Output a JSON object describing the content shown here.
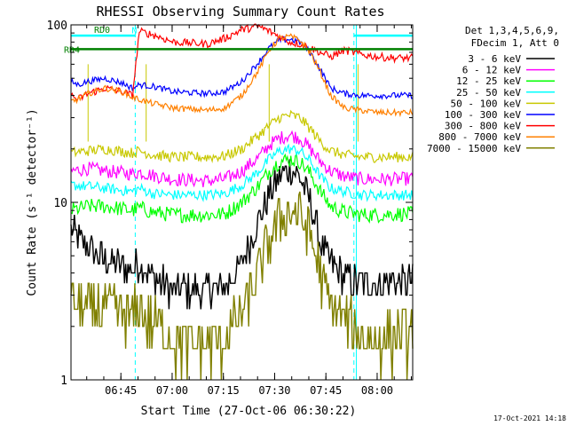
{
  "chart_data": {
    "type": "line",
    "title": "RHESSI Observing Summary Count Rates",
    "xlabel": "Start Time (27-Oct-06 06:30:22)",
    "ylabel": "Count Rate (s⁻¹ detector⁻¹)",
    "yscale": "log",
    "ylim": [
      1,
      100
    ],
    "xlim_minutes": [
      0,
      100
    ],
    "x_ticks": [
      {
        "label": "06:45",
        "minute": 14.6
      },
      {
        "label": "07:00",
        "minute": 29.6
      },
      {
        "label": "07:15",
        "minute": 44.6
      },
      {
        "label": "07:30",
        "minute": 59.6
      },
      {
        "label": "07:45",
        "minute": 74.6
      },
      {
        "label": "08:00",
        "minute": 89.6
      }
    ],
    "y_ticks": [
      {
        "label": "1",
        "value": 1
      },
      {
        "label": "10",
        "value": 10
      },
      {
        "label": "100",
        "value": 100
      }
    ],
    "legend_header": [
      "Det 1,3,4,5,6,9,",
      "FDecim 1, Att 0"
    ],
    "legend_position": "right",
    "series": [
      {
        "name": "3 - 6 keV",
        "color": "#000000",
        "x": [
          0,
          5,
          10,
          18,
          20,
          24,
          30,
          40,
          45,
          50,
          55,
          58,
          61,
          64,
          67,
          70,
          73,
          76,
          80,
          85,
          90,
          95,
          100
        ],
        "values": [
          7,
          5.5,
          4.8,
          4.2,
          4.5,
          3.8,
          3.2,
          3.2,
          3.3,
          4.5,
          8,
          11,
          14,
          15.5,
          14,
          10,
          6,
          4.5,
          3.8,
          3.5,
          3.5,
          3.6,
          3.6
        ]
      },
      {
        "name": "6 - 12 keV",
        "color": "#ff00ff",
        "x": [
          0,
          5,
          10,
          18,
          20,
          24,
          30,
          40,
          45,
          50,
          55,
          58,
          61,
          64,
          67,
          70,
          73,
          76,
          80,
          85,
          90,
          95,
          100
        ],
        "values": [
          15,
          15.5,
          15,
          14.5,
          14.8,
          14.2,
          13.5,
          13.2,
          13.5,
          15,
          18,
          21,
          23,
          24,
          23,
          20,
          17,
          15,
          14,
          13.5,
          13.5,
          13.5,
          13.6
        ]
      },
      {
        "name": "12 - 25 keV",
        "color": "#00ff00",
        "x": [
          0,
          5,
          10,
          18,
          20,
          24,
          30,
          40,
          45,
          50,
          55,
          58,
          61,
          64,
          67,
          70,
          73,
          76,
          80,
          85,
          90,
          95,
          100
        ],
        "values": [
          9,
          9.5,
          9.5,
          9,
          9.3,
          8.8,
          8.5,
          8.5,
          8.6,
          10,
          12.5,
          15,
          17,
          17.5,
          17,
          14.5,
          11.5,
          9.5,
          8.8,
          8.5,
          8.5,
          8.6,
          8.6
        ]
      },
      {
        "name": "25 - 50 keV",
        "color": "#00ffff",
        "x": [
          0,
          5,
          10,
          18,
          20,
          24,
          30,
          40,
          45,
          50,
          55,
          58,
          61,
          64,
          67,
          70,
          73,
          76,
          80,
          85,
          90,
          95,
          100
        ],
        "values": [
          12.5,
          12.3,
          12,
          11.5,
          12,
          11.2,
          11,
          11,
          11.2,
          12.5,
          15,
          17.5,
          19.5,
          20,
          19.5,
          17,
          14,
          12,
          11.5,
          11,
          11,
          11,
          11
        ]
      },
      {
        "name": "50 - 100 keV",
        "color": "#c8c800",
        "x": [
          0,
          5,
          10,
          18,
          20,
          24,
          30,
          40,
          45,
          50,
          55,
          58,
          61,
          64,
          67,
          70,
          73,
          76,
          80,
          85,
          90,
          95,
          100
        ],
        "values": [
          19,
          19.5,
          20,
          19,
          19.5,
          18.5,
          18,
          18,
          18.2,
          20,
          24,
          27,
          30,
          31,
          30,
          26,
          22,
          19.5,
          18.5,
          18,
          18,
          18,
          18
        ]
      },
      {
        "name": "100 - 300 keV",
        "color": "#0000ff",
        "x": [
          0,
          2,
          5,
          10,
          15,
          18,
          20,
          24,
          30,
          40,
          45,
          50,
          55,
          58,
          61,
          64,
          67,
          70,
          73,
          76,
          80,
          85,
          90,
          95,
          100
        ],
        "values": [
          48,
          46,
          48,
          50,
          47,
          44,
          46,
          45,
          42,
          41,
          42,
          48,
          62,
          74,
          82,
          83,
          80,
          70,
          56,
          44,
          41,
          40,
          40,
          40,
          40
        ]
      },
      {
        "name": "300 - 800 keV",
        "color": "#ff0000",
        "x": [
          0,
          2,
          5,
          10,
          15,
          18,
          20,
          24,
          30,
          40,
          45,
          50,
          55,
          58,
          61,
          64,
          67,
          70,
          73,
          76,
          80,
          85,
          90,
          95,
          100
        ],
        "values": [
          40,
          38,
          41,
          44,
          42,
          40,
          92,
          88,
          80,
          78,
          84,
          94,
          98,
          92,
          86,
          80,
          78,
          74,
          70,
          66,
          72,
          68,
          66,
          65,
          65
        ]
      },
      {
        "name": "800 - 7000 keV",
        "color": "#ff8000",
        "x": [
          0,
          2,
          5,
          10,
          15,
          18,
          20,
          24,
          30,
          40,
          45,
          50,
          55,
          58,
          61,
          64,
          67,
          70,
          73,
          76,
          80,
          85,
          90,
          95,
          100
        ],
        "values": [
          37,
          38,
          41,
          44,
          42,
          39,
          38,
          36,
          34,
          33,
          34,
          40,
          56,
          72,
          84,
          86,
          82,
          70,
          54,
          40,
          34,
          33,
          32,
          32,
          32
        ]
      },
      {
        "name": "7000 - 15000 keV",
        "color": "#808000",
        "x": [
          0,
          5,
          10,
          18,
          20,
          24,
          30,
          40,
          45,
          50,
          55,
          58,
          61,
          64,
          67,
          70,
          73,
          76,
          80,
          85,
          90,
          95,
          100
        ],
        "values": [
          2.8,
          2.5,
          2.6,
          2.3,
          2.4,
          2.1,
          1.6,
          1.6,
          1.7,
          2.3,
          4,
          6,
          8,
          9,
          8.5,
          6.5,
          4,
          2.6,
          2.1,
          1.8,
          1.7,
          1.7,
          1.8
        ]
      }
    ],
    "annotations": [
      {
        "label": "RD0",
        "x_range_minutes": [
          0,
          18.8
        ],
        "y": 87,
        "color": "#00ffff"
      },
      {
        "label": "RD4",
        "x_range_minutes": [
          0,
          100
        ],
        "y": 73,
        "color": "#008000"
      },
      {
        "label": "N",
        "x_minute": 18.8,
        "y": 94,
        "color": "#00ffff"
      }
    ],
    "vertical_lines_minutes": {
      "cyan_solid": [
        0,
        83.5
      ],
      "cyan_dashed": [
        18.8,
        82.8,
        100
      ],
      "olive": [
        5,
        22,
        58,
        84
      ]
    }
  },
  "footer": {
    "timestamp": "17-Oct-2021 14:18"
  }
}
